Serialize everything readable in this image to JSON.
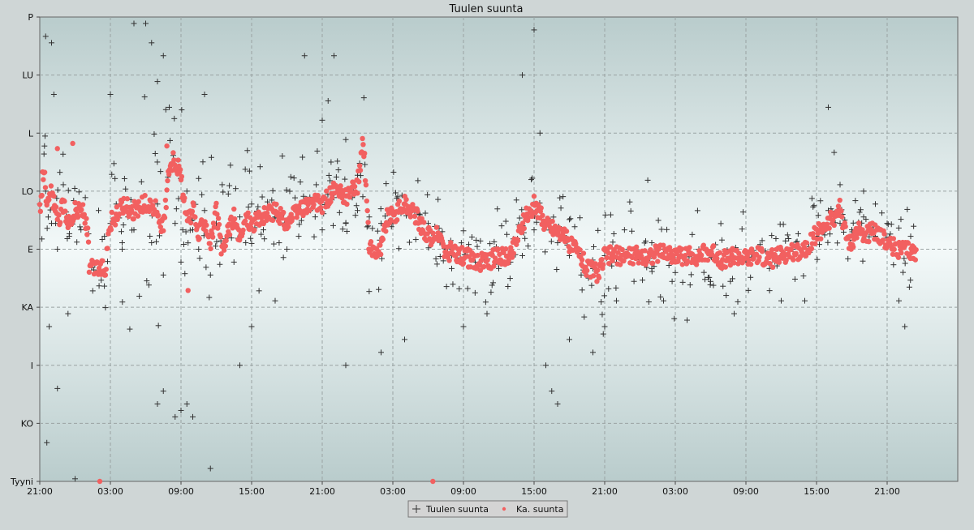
{
  "chart_data": {
    "type": "scatter",
    "title": "Tuulen suunta",
    "xlabel": "",
    "ylabel": "",
    "y_ticks": [
      {
        "label": "P",
        "value": 360
      },
      {
        "label": "LU",
        "value": 315
      },
      {
        "label": "L",
        "value": 270
      },
      {
        "label": "LO",
        "value": 225
      },
      {
        "label": "E",
        "value": 180
      },
      {
        "label": "KA",
        "value": 135
      },
      {
        "label": "I",
        "value": 90
      },
      {
        "label": "KO",
        "value": 45
      },
      {
        "label": "Tyyni",
        "value": 0
      }
    ],
    "ylim": [
      0,
      360
    ],
    "xlim_hours": [
      0,
      78
    ],
    "x_ticks": [
      {
        "label": "21:00",
        "hour": 0
      },
      {
        "label": "03:00",
        "hour": 6
      },
      {
        "label": "09:00",
        "hour": 12
      },
      {
        "label": "15:00",
        "hour": 18
      },
      {
        "label": "21:00",
        "hour": 24
      },
      {
        "label": "03:00",
        "hour": 30
      },
      {
        "label": "09:00",
        "hour": 36
      },
      {
        "label": "15:00",
        "hour": 42
      },
      {
        "label": "21:00",
        "hour": 48
      },
      {
        "label": "03:00",
        "hour": 54
      },
      {
        "label": "09:00",
        "hour": 60
      },
      {
        "label": "15:00",
        "hour": 66
      },
      {
        "label": "21:00",
        "hour": 72
      }
    ],
    "grid": true,
    "legend_position": "bottom-center",
    "series": [
      {
        "name": "Tuulen suunta",
        "marker": "plus",
        "color": "#333333",
        "scatter_deg": [
          60,
          40,
          120,
          100,
          80,
          70,
          60,
          50,
          45,
          45,
          40,
          40,
          40,
          40,
          40,
          60,
          60,
          60,
          40,
          40,
          40,
          40,
          40,
          40,
          40,
          40
        ],
        "points": [
          [
            0.0,
            215
          ],
          [
            0.5,
            225
          ],
          [
            1.0,
            200
          ],
          [
            1.5,
            180
          ],
          [
            2.0,
            230
          ],
          [
            2.5,
            190
          ],
          [
            3.0,
            205
          ],
          [
            3.5,
            195
          ],
          [
            5.0,
            210
          ],
          [
            5.5,
            190
          ],
          [
            6.0,
            200
          ],
          [
            6.5,
            215
          ],
          [
            7.0,
            180
          ],
          [
            7.5,
            205
          ],
          [
            8.0,
            195
          ],
          [
            9.0,
            210
          ],
          [
            9.5,
            185
          ],
          [
            10.0,
            215
          ],
          [
            10.5,
            160
          ],
          [
            11.0,
            240
          ],
          [
            11.5,
            200
          ],
          [
            12.0,
            170
          ],
          [
            12.5,
            225
          ],
          [
            13.0,
            195
          ],
          [
            13.5,
            180
          ],
          [
            14.0,
            210
          ],
          [
            14.5,
            160
          ],
          [
            15.0,
            200
          ],
          [
            15.5,
            230
          ],
          [
            16.0,
            190
          ],
          [
            16.5,
            170
          ],
          [
            17.0,
            205
          ],
          [
            17.5,
            185
          ],
          [
            18.0,
            215
          ],
          [
            19.0,
            195
          ],
          [
            20.0,
            205
          ],
          [
            21.0,
            200
          ],
          [
            22.0,
            190
          ],
          [
            23.0,
            210
          ],
          [
            24.0,
            195
          ],
          [
            25.0,
            220
          ],
          [
            26.0,
            200
          ],
          [
            27.0,
            210
          ],
          [
            28.0,
            205
          ],
          [
            29.0,
            200
          ],
          [
            30.0,
            200
          ],
          [
            31.0,
            210
          ],
          [
            33.0,
            200
          ],
          [
            34.0,
            185
          ],
          [
            35.0,
            175
          ],
          [
            36.0,
            180
          ],
          [
            37.0,
            170
          ],
          [
            38.0,
            175
          ],
          [
            39.0,
            165
          ],
          [
            40.0,
            170
          ],
          [
            41.0,
            175
          ],
          [
            42.0,
            195
          ],
          [
            43.0,
            200
          ],
          [
            44.0,
            185
          ],
          [
            45.0,
            175
          ],
          [
            46.0,
            160
          ],
          [
            47.0,
            165
          ],
          [
            48.0,
            175
          ],
          [
            49.0,
            170
          ],
          [
            50.0,
            180
          ],
          [
            51.0,
            175
          ],
          [
            52.0,
            185
          ],
          [
            53.0,
            180
          ],
          [
            54.0,
            175
          ],
          [
            55.0,
            170
          ],
          [
            56.0,
            180
          ],
          [
            57.0,
            175
          ],
          [
            58.0,
            165
          ],
          [
            59.0,
            180
          ],
          [
            60.0,
            170
          ],
          [
            61.0,
            175
          ],
          [
            62.0,
            165
          ],
          [
            63.0,
            175
          ],
          [
            64.0,
            180
          ],
          [
            65.0,
            175
          ],
          [
            66.0,
            190
          ],
          [
            67.0,
            210
          ],
          [
            68.0,
            200
          ],
          [
            69.0,
            195
          ],
          [
            70.0,
            205
          ],
          [
            71.0,
            190
          ],
          [
            72.0,
            200
          ],
          [
            73.0,
            185
          ],
          [
            74.0,
            190
          ],
          [
            0.5,
            345
          ],
          [
            1.0,
            340
          ],
          [
            1.2,
            300
          ],
          [
            0.4,
            260
          ],
          [
            0.8,
            120
          ],
          [
            0.6,
            30
          ],
          [
            1.5,
            72
          ],
          [
            2.4,
            130
          ],
          [
            8.0,
            355
          ],
          [
            9.0,
            355
          ],
          [
            9.5,
            340
          ],
          [
            10.5,
            330
          ],
          [
            10.0,
            310
          ],
          [
            11.0,
            290
          ],
          [
            10.0,
            60
          ],
          [
            11.5,
            50
          ],
          [
            10.5,
            70
          ],
          [
            12.0,
            55
          ],
          [
            12.5,
            60
          ],
          [
            13.0,
            50
          ],
          [
            14.0,
            300
          ],
          [
            14.5,
            10
          ],
          [
            17.0,
            90
          ],
          [
            18.0,
            120
          ],
          [
            20.0,
            140
          ],
          [
            21.0,
            180
          ],
          [
            22.5,
            330
          ],
          [
            24.0,
            280
          ],
          [
            25.0,
            330
          ],
          [
            26.0,
            90
          ],
          [
            24.5,
            295
          ],
          [
            29.0,
            100
          ],
          [
            31.0,
            110
          ],
          [
            35.0,
            165
          ],
          [
            36.0,
            120
          ],
          [
            38.0,
            130
          ],
          [
            41.0,
            315
          ],
          [
            42.0,
            350
          ],
          [
            42.5,
            270
          ],
          [
            43.0,
            90
          ],
          [
            43.5,
            70
          ],
          [
            44.0,
            60
          ],
          [
            45.0,
            110
          ],
          [
            48.0,
            120
          ],
          [
            49.0,
            140
          ],
          [
            52.0,
            165
          ],
          [
            55.0,
            125
          ],
          [
            59.0,
            130
          ],
          [
            63.0,
            140
          ],
          [
            67.0,
            290
          ],
          [
            67.5,
            255
          ],
          [
            68.0,
            230
          ],
          [
            70.0,
            225
          ],
          [
            71.0,
            215
          ],
          [
            73.0,
            140
          ],
          [
            73.5,
            120
          ],
          [
            65.0,
            140
          ],
          [
            3.0,
            2
          ],
          [
            6.0,
            300
          ],
          [
            7.0,
            185
          ],
          [
            26.0,
            265
          ],
          [
            47.0,
            100
          ],
          [
            53.0,
            140
          ],
          [
            57.0,
            155
          ]
        ]
      },
      {
        "name": "Ka. suunta",
        "marker": "dot",
        "color": "#f26060",
        "path_deg": [
          [
            0.0,
            210
          ],
          [
            0.4,
            250
          ],
          [
            0.6,
            210
          ],
          [
            1.0,
            225
          ],
          [
            1.5,
            200
          ],
          [
            2.0,
            215
          ],
          [
            2.5,
            200
          ],
          [
            3.0,
            210
          ],
          [
            3.7,
            210
          ],
          [
            4.1,
            190
          ],
          [
            4.2,
            165
          ],
          [
            5.6,
            165
          ],
          [
            5.9,
            200
          ],
          [
            6.5,
            205
          ],
          [
            7.0,
            215
          ],
          [
            8.0,
            210
          ],
          [
            9.0,
            215
          ],
          [
            10.0,
            210
          ],
          [
            10.5,
            195
          ],
          [
            11.0,
            245
          ],
          [
            11.5,
            250
          ],
          [
            12.0,
            235
          ],
          [
            12.5,
            200
          ],
          [
            13.0,
            210
          ],
          [
            13.5,
            190
          ],
          [
            14.0,
            205
          ],
          [
            14.5,
            185
          ],
          [
            15.0,
            210
          ],
          [
            15.5,
            175
          ],
          [
            16.0,
            195
          ],
          [
            16.5,
            205
          ],
          [
            17.0,
            185
          ],
          [
            17.5,
            205
          ],
          [
            18.0,
            200
          ],
          [
            19.0,
            205
          ],
          [
            20.0,
            210
          ],
          [
            21.0,
            200
          ],
          [
            22.0,
            210
          ],
          [
            23.0,
            215
          ],
          [
            24.0,
            215
          ],
          [
            25.0,
            225
          ],
          [
            26.0,
            220
          ],
          [
            27.0,
            230
          ],
          [
            27.5,
            265
          ],
          [
            28.0,
            180
          ],
          [
            29.0,
            180
          ],
          [
            29.5,
            205
          ],
          [
            30.0,
            205
          ],
          [
            31.0,
            215
          ],
          [
            32.0,
            205
          ],
          [
            33.0,
            190
          ],
          [
            34.0,
            190
          ],
          [
            34.5,
            175
          ],
          [
            35.0,
            180
          ],
          [
            35.5,
            175
          ],
          [
            36.0,
            175
          ],
          [
            37.0,
            170
          ],
          [
            38.0,
            170
          ],
          [
            39.0,
            175
          ],
          [
            40.0,
            175
          ],
          [
            41.0,
            200
          ],
          [
            42.0,
            215
          ],
          [
            43.0,
            200
          ],
          [
            44.0,
            195
          ],
          [
            45.0,
            185
          ],
          [
            46.0,
            175
          ],
          [
            46.5,
            165
          ],
          [
            47.0,
            165
          ],
          [
            47.5,
            160
          ],
          [
            48.0,
            175
          ],
          [
            49.0,
            175
          ],
          [
            50.0,
            175
          ],
          [
            51.0,
            175
          ],
          [
            52.0,
            175
          ],
          [
            53.0,
            178
          ],
          [
            54.0,
            175
          ],
          [
            55.0,
            175
          ],
          [
            56.0,
            175
          ],
          [
            57.0,
            178
          ],
          [
            58.0,
            172
          ],
          [
            59.0,
            175
          ],
          [
            60.0,
            172
          ],
          [
            61.0,
            175
          ],
          [
            62.0,
            172
          ],
          [
            63.0,
            175
          ],
          [
            64.0,
            178
          ],
          [
            65.0,
            180
          ],
          [
            66.0,
            192
          ],
          [
            67.0,
            200
          ],
          [
            67.5,
            205
          ],
          [
            68.0,
            212
          ],
          [
            68.5,
            190
          ],
          [
            69.0,
            185
          ],
          [
            69.5,
            195
          ],
          [
            70.0,
            190
          ],
          [
            71.0,
            195
          ],
          [
            72.0,
            185
          ],
          [
            73.0,
            180
          ],
          [
            74.0,
            178
          ],
          [
            74.5,
            175
          ]
        ],
        "extra_points": [
          [
            5.1,
            0
          ],
          [
            33.4,
            0
          ],
          [
            12.6,
            148
          ],
          [
            10.8,
            260
          ],
          [
            1.5,
            258
          ],
          [
            2.8,
            262
          ]
        ]
      }
    ]
  }
}
